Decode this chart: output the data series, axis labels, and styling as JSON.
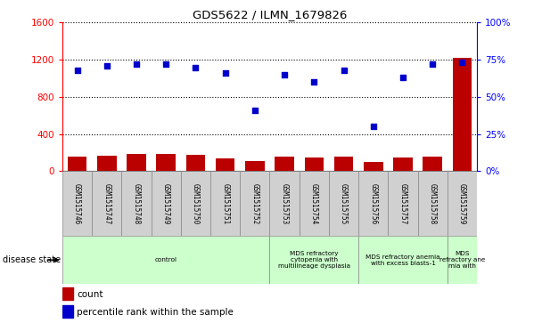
{
  "title": "GDS5622 / ILMN_1679826",
  "samples": [
    "GSM1515746",
    "GSM1515747",
    "GSM1515748",
    "GSM1515749",
    "GSM1515750",
    "GSM1515751",
    "GSM1515752",
    "GSM1515753",
    "GSM1515754",
    "GSM1515755",
    "GSM1515756",
    "GSM1515757",
    "GSM1515758",
    "GSM1515759"
  ],
  "counts": [
    155,
    170,
    185,
    185,
    175,
    135,
    110,
    155,
    145,
    155,
    100,
    145,
    155,
    1220
  ],
  "percentile_ranks": [
    68,
    71,
    72,
    72,
    70,
    66,
    41,
    65,
    60,
    68,
    30,
    63,
    72,
    73
  ],
  "ylim_left": [
    0,
    1600
  ],
  "ylim_right": [
    0,
    100
  ],
  "yticks_left": [
    0,
    400,
    800,
    1200,
    1600
  ],
  "yticks_right": [
    0,
    25,
    50,
    75,
    100
  ],
  "bar_color": "#bb0000",
  "dot_color": "#0000cc",
  "disease_groups": [
    {
      "label": "control",
      "start": 0,
      "end": 7
    },
    {
      "label": "MDS refractory\ncytopenia with\nmultilineage dysplasia",
      "start": 7,
      "end": 10
    },
    {
      "label": "MDS refractory anemia\nwith excess blasts-1",
      "start": 10,
      "end": 13
    },
    {
      "label": "MDS\nrefractory ane\nmia with",
      "start": 13,
      "end": 14
    }
  ],
  "disease_state_label": "disease state",
  "legend_count_label": "count",
  "legend_pct_label": "percentile rank within the sample",
  "group_bg_color": "#ccffcc",
  "sample_bg_color": "#d0d0d0",
  "spine_color": "#000000"
}
